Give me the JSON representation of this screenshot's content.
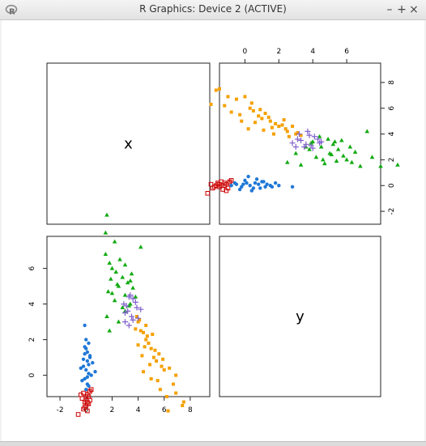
{
  "window": {
    "title": "R Graphics: Device 2 (ACTIVE)",
    "buttons": [
      "–",
      "+",
      "×"
    ]
  },
  "colors": {
    "red": "#cc0000",
    "blue": "#1f78d8",
    "green": "#11aa11",
    "orange": "#f5a000",
    "purple": "#8060cc"
  },
  "chart_data": {
    "type": "scatter",
    "variables": [
      "x",
      "y"
    ],
    "top_axis": {
      "ticks": [
        0,
        2,
        4,
        6
      ],
      "range": [
        -1.5,
        8
      ]
    },
    "right_axis": {
      "ticks": [
        -2,
        0,
        2,
        4,
        6,
        8
      ],
      "range": [
        -3,
        9.5
      ]
    },
    "left_axis": {
      "ticks": [
        0,
        2,
        4,
        6
      ],
      "range": [
        -1.2,
        7.8
      ]
    },
    "bottom_axis": {
      "ticks": [
        -2,
        0,
        2,
        4,
        6,
        8
      ],
      "range": [
        -3,
        9.5
      ]
    },
    "clusters": [
      {
        "color": "red",
        "marker": "open-square",
        "x": [
          -1.6,
          -1.4,
          -1.9,
          -1.2,
          -0.9,
          -1.5,
          -1.7,
          -1.1,
          -0.8,
          -1.3,
          -2.0,
          -1.6,
          -1.0,
          -1.2,
          -1.8,
          -0.9,
          -1.4,
          -1.1,
          -1.5,
          -2.2
        ],
        "y": [
          0.1,
          0.0,
          -0.2,
          0.2,
          0.3,
          -0.1,
          0.0,
          0.1,
          0.4,
          -0.3,
          0.1,
          0.2,
          -0.2,
          0.0,
          -0.1,
          0.2,
          0.3,
          -0.4,
          0.1,
          -0.6
        ]
      },
      {
        "color": "blue",
        "marker": "filled-circle",
        "x": [
          -0.8,
          -0.5,
          -0.2,
          0.1,
          0.3,
          0.5,
          0.8,
          1.0,
          1.2,
          1.5,
          1.8,
          0.0,
          -0.3,
          0.6,
          0.9,
          1.3,
          0.2,
          -0.6,
          0.4,
          1.1,
          1.6,
          0.7,
          -0.1,
          2.0,
          2.8
        ],
        "y": [
          0.0,
          0.1,
          -0.1,
          0.2,
          0.0,
          -0.2,
          0.1,
          0.3,
          -0.1,
          0.0,
          0.2,
          0.4,
          -0.3,
          0.2,
          -0.2,
          0.1,
          0.7,
          0.2,
          -0.4,
          0.3,
          -0.1,
          0.5,
          0.1,
          0.0,
          -0.1
        ]
      },
      {
        "color": "green",
        "marker": "filled-triangle",
        "x": [
          2.5,
          3.0,
          3.3,
          3.8,
          4.0,
          4.2,
          4.5,
          4.6,
          4.9,
          5.0,
          5.2,
          5.4,
          5.5,
          5.8,
          6.0,
          6.2,
          6.5,
          6.8,
          7.2,
          7.5,
          8.0,
          9.0,
          3.6,
          4.4,
          5.1,
          5.7,
          6.3,
          3.9,
          4.7,
          5.3
        ],
        "y": [
          1.8,
          2.5,
          1.6,
          2.8,
          3.4,
          2.2,
          3.0,
          2.0,
          3.6,
          2.5,
          3.2,
          1.9,
          2.8,
          2.3,
          2.0,
          3.0,
          2.6,
          1.5,
          4.2,
          2.2,
          1.5,
          1.6,
          3.0,
          3.8,
          2.4,
          3.5,
          1.8,
          3.3,
          1.7,
          3.4
        ]
      },
      {
        "color": "orange",
        "marker": "filled-square",
        "x": [
          -1.5,
          -1.7,
          -2.0,
          -1.0,
          -0.5,
          0.0,
          0.3,
          0.5,
          0.8,
          1.0,
          1.2,
          1.5,
          1.8,
          2.0,
          2.3,
          2.5,
          2.8,
          3.0,
          3.3,
          -0.8,
          -0.3,
          0.2,
          0.6,
          1.1,
          1.4,
          1.7,
          2.2,
          2.6,
          -1.2,
          0.9,
          1.6,
          2.4,
          3.1,
          -0.2,
          0.4
        ],
        "y": [
          7.5,
          7.4,
          6.3,
          6.9,
          6.7,
          6.9,
          6.0,
          5.8,
          5.4,
          5.2,
          5.6,
          5.0,
          4.8,
          4.6,
          5.1,
          4.2,
          4.6,
          4.0,
          3.9,
          5.7,
          5.5,
          4.4,
          4.9,
          4.3,
          5.3,
          4.0,
          4.7,
          3.8,
          6.2,
          5.9,
          4.5,
          4.4,
          4.1,
          5.0,
          6.4
        ]
      },
      {
        "color": "purple",
        "marker": "plus",
        "x": [
          3.0,
          3.3,
          3.6,
          4.0,
          4.3,
          3.2,
          3.8,
          4.5,
          2.8,
          3.5,
          4.1,
          3.9,
          3.1,
          3.7,
          4.4
        ],
        "y": [
          3.0,
          3.5,
          3.2,
          2.9,
          3.6,
          4.0,
          3.9,
          3.4,
          3.3,
          3.0,
          3.8,
          3.1,
          3.6,
          4.2,
          3.3
        ]
      }
    ]
  }
}
